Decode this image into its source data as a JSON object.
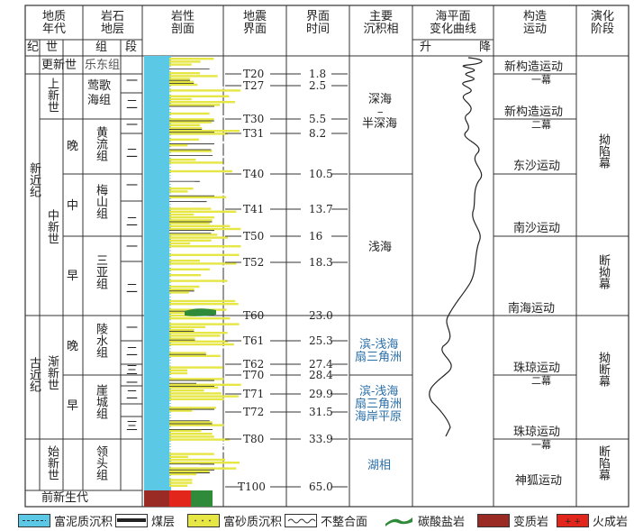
{
  "headers": {
    "geo_age": "地质\n年代",
    "strata": "岩石\n地层",
    "lith": "岩性\n剖面",
    "seismic": "地震\n界面",
    "time": "界面\n时间",
    "facies": "主要\n沉积相",
    "sea_level": "海平面\n变化曲线",
    "sea_up": "升",
    "sea_down": "降",
    "tectonic": "构造\n运动",
    "evolution": "演化\n阶段",
    "ji": "纪",
    "shi": "世",
    "zu": "组",
    "duan": "段"
  },
  "periods": {
    "neogene": "新近纪",
    "paleogene": "古近纪",
    "pre": "前新生代"
  },
  "epochs": {
    "holocene_pleistocene": "更新世",
    "pliocene": "上新世",
    "miocene": "中新世",
    "oligocene": "渐新世",
    "eocene": "始新世",
    "late": "晚",
    "mid": "中",
    "early": "早",
    "olig_late": "晚",
    "olig_early": "早"
  },
  "formations": {
    "ledong": "乐东组",
    "yinggehai": "莺歌海组",
    "huangliu": "黄流组",
    "meishan": "梅山组",
    "sanya": "三亚组",
    "lingshui": "陵水组",
    "yacheng": "崖城组",
    "lingtou": "领头组"
  },
  "members": {
    "one": "一",
    "two": "二",
    "three": "三"
  },
  "seismic": [
    "T20",
    "T27",
    "T30",
    "T31",
    "T40",
    "T41",
    "T50",
    "T52",
    "T60",
    "T61",
    "T62",
    "T70",
    "T71",
    "T72",
    "T80",
    "T100"
  ],
  "times": [
    "1.8",
    "2.5",
    "5.5",
    "8.2",
    "10.5",
    "13.7",
    "16",
    "18.3",
    "23.0",
    "25.3",
    "27.4",
    "28.4",
    "29.9",
    "31.5",
    "33.9",
    "65.0"
  ],
  "facies": {
    "deep": "深海",
    "dash": "–",
    "semi": "半深海",
    "shallow": "浅海",
    "delta1a": "滨-浅海",
    "delta1b": "扇三角洲",
    "delta2a": "滨-浅海",
    "delta2b": "扇三角洲",
    "delta2c": "海岸平原",
    "lake": "湖相"
  },
  "tectonic": {
    "xin1": "新构造运动",
    "mu1": "一幕",
    "xin2": "新构造运动",
    "mu2": "二幕",
    "dongsha": "东沙运动",
    "nansha": "南沙运动",
    "nanhai": "南海运动",
    "zhuqiong1": "珠琼运动",
    "mu3": "二幕",
    "zhuqiong2": "珠琼运动",
    "mu4": "一幕",
    "shenhu": "神狐运动"
  },
  "evolution": {
    "a": "拗陷幕",
    "b": "断拗幕",
    "c": "拗断幕",
    "d": "断陷幕"
  },
  "legend": {
    "mud": "富泥质沉积",
    "coal": "煤层",
    "sand": "富砂质沉积",
    "unconf": "不整合面",
    "carb": "碳酸盐岩",
    "meta": "变质岩",
    "igneous": "火成岩"
  },
  "colors": {
    "mud": "#5bc8e6",
    "sand": "#e6e645",
    "carb": "#2f8a3a",
    "meta": "#9a2a24",
    "igneous": "#e3261c",
    "dark": "#222222"
  }
}
